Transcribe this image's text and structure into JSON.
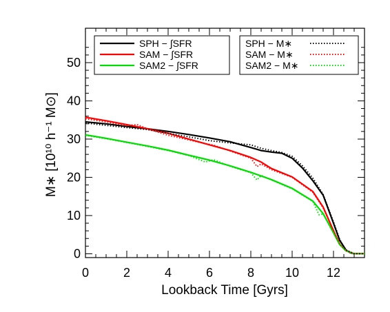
{
  "chart_data": {
    "type": "line",
    "xlabel": "Lookback Time [Gyrs]",
    "ylabel": "M∗ [10¹⁰ h⁻¹ M⊙]",
    "xlim": [
      0,
      13.5
    ],
    "ylim": [
      -1,
      59
    ],
    "xticks": [
      0,
      2,
      4,
      6,
      8,
      10,
      12
    ],
    "yticks": [
      0,
      10,
      20,
      30,
      40,
      50
    ],
    "xtick_labels": [
      "0",
      "2",
      "4",
      "6",
      "8",
      "10",
      "12"
    ],
    "ytick_labels": [
      "0",
      "10",
      "20",
      "30",
      "40",
      "50"
    ],
    "grid": false,
    "legend_left_placement": "top-left",
    "legend_right_placement": "top-right",
    "series": [
      {
        "name": "SPH",
        "legend_label": "SPH  − ∫SFR",
        "color": "#000000",
        "style": "solid",
        "x": [
          0,
          1,
          2,
          3,
          4,
          5,
          6,
          7,
          8,
          8.5,
          9,
          9.5,
          10,
          10.5,
          11,
          11.5,
          12,
          12.3,
          12.6,
          12.8,
          13,
          13.5
        ],
        "y": [
          34.5,
          34,
          33.3,
          32.7,
          32,
          31.2,
          30.3,
          29.3,
          27.8,
          27,
          26.6,
          26.3,
          25,
          22.4,
          19.1,
          15.3,
          8,
          3.5,
          1,
          0.3,
          0,
          0
        ]
      },
      {
        "name": "SAM",
        "legend_label": "SAM  − ∫SFR",
        "color": "#ff0000",
        "style": "solid",
        "x": [
          0,
          1,
          2,
          3,
          4,
          5,
          6,
          7,
          8,
          8.5,
          9,
          10,
          11,
          11.5,
          12,
          12.3,
          12.6,
          13,
          13.5
        ],
        "y": [
          35.7,
          34.8,
          33.8,
          32.7,
          31.5,
          30,
          28.5,
          27,
          25.2,
          24,
          22.3,
          20.1,
          16.3,
          12.2,
          6,
          2.5,
          0.8,
          0,
          0
        ]
      },
      {
        "name": "SAM2",
        "legend_label": "SAM2 − ∫SFR",
        "color": "#00dd00",
        "style": "solid",
        "x": [
          0,
          1,
          2,
          3,
          4,
          5,
          6,
          7,
          8,
          9,
          10,
          11,
          11.5,
          12,
          12.3,
          12.6,
          13,
          13.5
        ],
        "y": [
          31.1,
          30.2,
          29.2,
          28.2,
          27.1,
          25.8,
          24.5,
          23,
          21.3,
          19.4,
          17.1,
          13.8,
          10.5,
          5.5,
          2.4,
          0.8,
          0,
          0
        ]
      },
      {
        "name": "SPH",
        "legend_label": "SPH  −  M∗",
        "color": "#000000",
        "style": "dotted",
        "x": [
          0,
          1,
          2,
          3,
          4,
          5,
          6,
          7,
          8,
          8.5,
          9,
          9.5,
          10,
          10.5,
          11,
          11.5,
          12,
          12.3,
          12.6,
          13,
          13.5
        ],
        "y": [
          34.2,
          33.6,
          33,
          32.5,
          31.5,
          30.6,
          29.6,
          29,
          28.5,
          27.6,
          27,
          26.5,
          25.5,
          23,
          19.8,
          15.5,
          8.3,
          3.7,
          1,
          0,
          0
        ]
      },
      {
        "name": "SAM",
        "legend_label": "SAM  −  M∗",
        "color": "#ff0000",
        "style": "dotted",
        "x": [
          0,
          1,
          2,
          2.5,
          3,
          4,
          5,
          5.8,
          6.2,
          7,
          8,
          8.3,
          8.5,
          9,
          10,
          11,
          11.5,
          12,
          12.3,
          12.6,
          13,
          13.5
        ],
        "y": [
          35.3,
          34.5,
          33.5,
          33.8,
          32.7,
          31,
          29.8,
          28.8,
          28.4,
          26.9,
          25,
          22.8,
          23.5,
          22,
          20,
          16.1,
          12,
          6,
          2.5,
          0.8,
          0,
          0
        ]
      },
      {
        "name": "SAM2",
        "legend_label": "SAM2 −  M∗",
        "color": "#00dd00",
        "style": "dotted",
        "x": [
          0,
          1,
          2,
          3,
          4,
          5,
          5.8,
          6.2,
          7,
          8,
          8.3,
          8.5,
          9,
          10,
          11,
          11.3,
          11.5,
          12,
          12.3,
          12.6,
          13,
          13.5
        ],
        "y": [
          31,
          30.1,
          29.1,
          28.1,
          27,
          25.7,
          24,
          24.6,
          22.9,
          21.2,
          19.3,
          20.5,
          19.3,
          17,
          13.7,
          10.2,
          10.4,
          5.4,
          2.4,
          0.8,
          0,
          0
        ]
      }
    ]
  }
}
